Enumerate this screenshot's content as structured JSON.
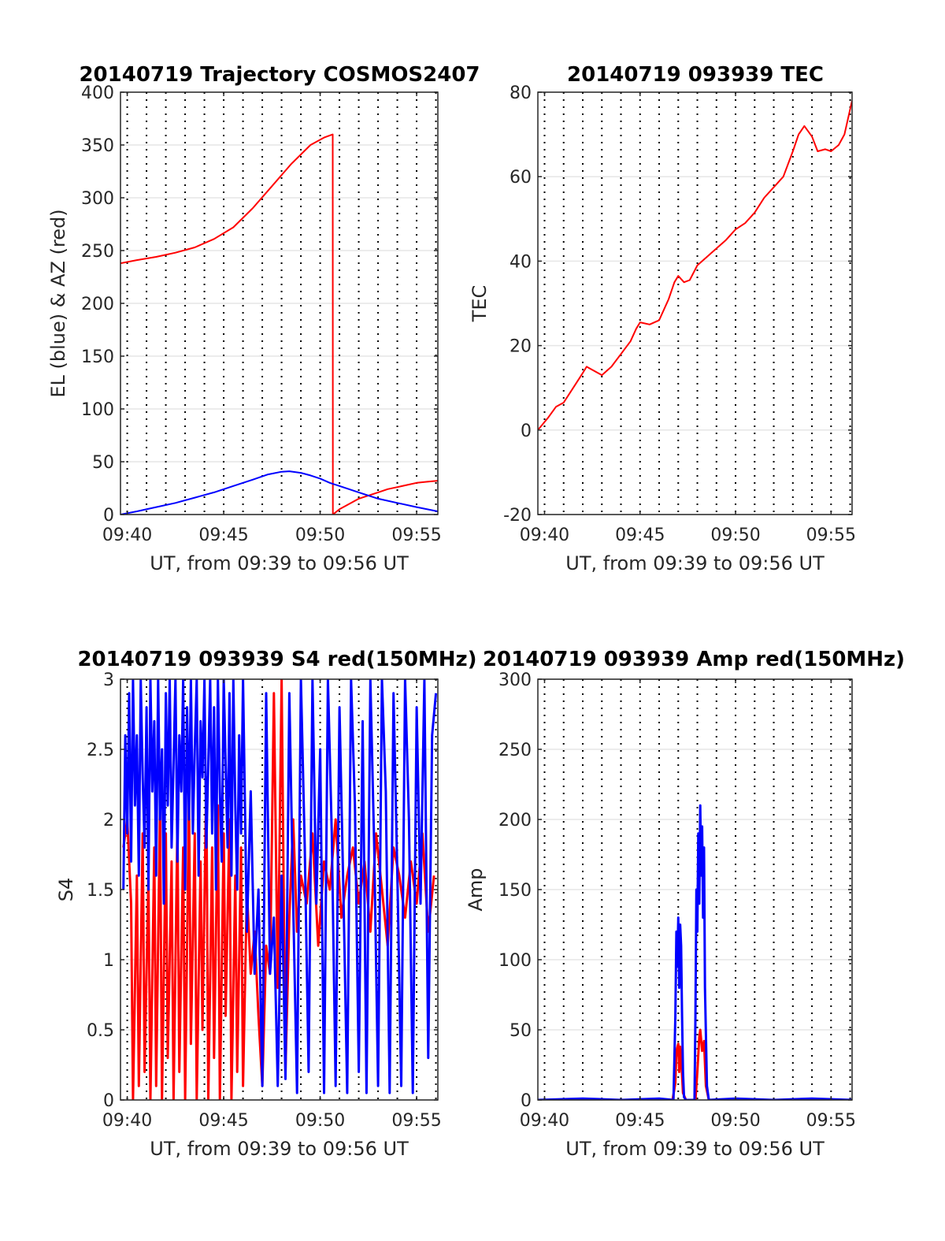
{
  "colors": {
    "el": "#0000ff",
    "az": "#ff0000",
    "grid": "#000000",
    "axis": "#262626"
  },
  "chart_data": [
    {
      "type": "line",
      "title": "20140719 Trajectory COSMOS2407",
      "xlabel": "UT, from 09:39 to 09:56 UT",
      "ylabel": "EL (blue) & AZ (red)",
      "xlim": [
        39.65,
        56.1
      ],
      "ylim": [
        0,
        400
      ],
      "xticks": [
        40,
        45,
        50,
        55
      ],
      "xtick_labels": [
        "09:40",
        "09:45",
        "09:50",
        "09:55"
      ],
      "yticks": [
        0,
        50,
        100,
        150,
        200,
        250,
        300,
        350,
        400
      ],
      "ytick_labels": [
        "0",
        "50",
        "100",
        "150",
        "200",
        "250",
        "300",
        "350",
        "400"
      ],
      "series": [
        {
          "color": "#ff0000",
          "x": [
            39.65,
            40.5,
            41.5,
            42.5,
            43.5,
            44.5,
            45.5,
            46.5,
            47.5,
            48.5,
            49.5,
            50.2,
            50.65,
            50.66,
            51.0,
            51.5,
            52.0,
            52.5,
            53.0,
            53.5,
            54.0,
            54.5,
            55.0,
            55.5,
            56.1
          ],
          "y": [
            238,
            241,
            244,
            248,
            253,
            261,
            272,
            290,
            311,
            332,
            350,
            357,
            360,
            0,
            5,
            10,
            15,
            18,
            21,
            24,
            26,
            28,
            30,
            31,
            32
          ]
        },
        {
          "color": "#0000ff",
          "x": [
            39.65,
            40.5,
            41.5,
            42.5,
            43.5,
            44.5,
            45.5,
            46.5,
            47.3,
            48.0,
            48.4,
            49.0,
            49.5,
            50.0,
            50.5,
            51.0,
            52.0,
            53.0,
            54.0,
            55.0,
            56.1
          ],
          "y": [
            0,
            3,
            7,
            11,
            16,
            21,
            27,
            33,
            38,
            40.5,
            41,
            39.5,
            37,
            34,
            30,
            27,
            21,
            15,
            11,
            7,
            3
          ]
        }
      ]
    },
    {
      "type": "line",
      "title": "20140719 093939 TEC",
      "xlabel": "UT, from 09:39 to 09:56 UT",
      "ylabel": "TEC",
      "xlim": [
        39.65,
        56.1
      ],
      "ylim": [
        -20,
        80
      ],
      "xticks": [
        40,
        45,
        50,
        55
      ],
      "xtick_labels": [
        "09:40",
        "09:45",
        "09:50",
        "09:55"
      ],
      "yticks": [
        -20,
        0,
        20,
        40,
        60,
        80
      ],
      "ytick_labels": [
        "-20",
        "0",
        "20",
        "40",
        "60",
        "80"
      ],
      "series": [
        {
          "color": "#ff0000",
          "x": [
            39.65,
            40.2,
            40.6,
            41.0,
            41.5,
            42.0,
            42.2,
            42.6,
            43.0,
            43.5,
            44.0,
            44.5,
            44.8,
            45.0,
            45.5,
            46.0,
            46.5,
            46.8,
            47.0,
            47.3,
            47.6,
            48.0,
            48.5,
            49.0,
            49.5,
            50.0,
            50.5,
            51.0,
            51.5,
            52.0,
            52.5,
            53.0,
            53.3,
            53.6,
            54.0,
            54.3,
            54.7,
            55.0,
            55.4,
            55.7,
            56.1
          ],
          "y": [
            0,
            3,
            5.5,
            6.5,
            10,
            13.5,
            15,
            14,
            13,
            15,
            18,
            21,
            24,
            25.5,
            25,
            26,
            31,
            35,
            36.5,
            35,
            35.5,
            39,
            41,
            43,
            45,
            47.5,
            49,
            51.5,
            55,
            57.5,
            60,
            66,
            70,
            72,
            69.5,
            66,
            66.5,
            66,
            67.5,
            70,
            78
          ]
        }
      ]
    },
    {
      "type": "line",
      "title": "20140719 093939 S4 red(150MHz)",
      "xlabel": "UT, from 09:39 to 09:56 UT",
      "ylabel": "S4",
      "xlim": [
        39.65,
        56.1
      ],
      "ylim": [
        0,
        3
      ],
      "xticks": [
        40,
        45,
        50,
        55
      ],
      "xtick_labels": [
        "09:40",
        "09:45",
        "09:50",
        "09:55"
      ],
      "yticks": [
        0,
        0.5,
        1,
        1.5,
        2,
        2.5,
        3
      ],
      "ytick_labels": [
        "0",
        "0.5",
        "1",
        "1.5",
        "2",
        "2.5",
        "3"
      ],
      "series": [
        {
          "color": "#ff0000",
          "x": [
            39.8,
            40.0,
            40.2,
            40.3,
            40.5,
            40.6,
            40.8,
            40.9,
            41.1,
            41.2,
            41.4,
            41.5,
            41.7,
            41.8,
            42.0,
            42.1,
            42.3,
            42.4,
            42.6,
            42.7,
            42.9,
            43.0,
            43.2,
            43.3,
            43.5,
            43.6,
            43.8,
            43.9,
            44.1,
            44.2,
            44.4,
            44.5,
            44.7,
            44.8,
            45.0,
            45.1,
            45.3,
            45.4,
            45.6,
            45.7,
            45.9,
            46.0,
            46.2,
            46.4,
            46.6,
            46.8,
            47.0,
            47.2,
            47.4,
            47.6,
            47.8,
            48.0,
            48.2,
            48.4,
            48.6,
            48.8,
            49.0,
            49.3,
            49.6,
            49.9,
            50.2,
            50.5,
            50.8,
            51.1,
            51.4,
            51.7,
            52.0,
            52.3,
            52.6,
            52.9,
            53.2,
            53.5,
            53.8,
            54.1,
            54.4,
            54.7,
            55.0,
            55.3,
            55.6,
            55.9
          ],
          "y": [
            1.8,
            2.0,
            1.4,
            0,
            1.6,
            0.1,
            1.9,
            0.2,
            1.6,
            0,
            1.8,
            0.1,
            2.1,
            0,
            1.9,
            0.3,
            1.7,
            0,
            2.0,
            0.2,
            1.8,
            0,
            2.2,
            0.4,
            1.9,
            0,
            1.7,
            0.5,
            2.3,
            0,
            1.8,
            0.3,
            2.1,
            0,
            1.9,
            0.6,
            2.0,
            0,
            1.6,
            0.2,
            1.8,
            0.1,
            1.5,
            0.9,
            1.2,
            0.6,
            0.1,
            1.1,
            0.9,
            2.9,
            0.8,
            3.0,
            0.2,
            1.3,
            2.0,
            1.2,
            1.6,
            1.4,
            1.9,
            1.1,
            1.7,
            1.5,
            2.0,
            1.3,
            1.6,
            1.8,
            1.4,
            1.7,
            1.2,
            1.9,
            1.5,
            1.1,
            1.8,
            1.6,
            1.3,
            1.7,
            1.4,
            1.9,
            1.2,
            1.6
          ]
        },
        {
          "color": "#0000ff",
          "x": [
            39.8,
            39.9,
            40.0,
            40.1,
            40.2,
            40.3,
            40.4,
            40.5,
            40.6,
            40.7,
            40.8,
            40.9,
            41.0,
            41.1,
            41.2,
            41.3,
            41.4,
            41.5,
            41.6,
            41.7,
            41.8,
            41.9,
            42.0,
            42.1,
            42.2,
            42.3,
            42.4,
            42.5,
            42.6,
            42.7,
            42.8,
            42.9,
            43.0,
            43.1,
            43.2,
            43.3,
            43.4,
            43.5,
            43.6,
            43.7,
            43.8,
            43.9,
            44.0,
            44.1,
            44.2,
            44.3,
            44.4,
            44.5,
            44.6,
            44.7,
            44.8,
            44.9,
            45.0,
            45.1,
            45.2,
            45.3,
            45.4,
            45.5,
            45.6,
            45.7,
            45.8,
            45.9,
            46.0,
            46.2,
            46.4,
            46.6,
            46.8,
            47.0,
            47.2,
            47.4,
            47.6,
            47.8,
            48.0,
            48.2,
            48.4,
            48.6,
            48.8,
            49.0,
            49.2,
            49.4,
            49.6,
            49.8,
            50.0,
            50.2,
            50.4,
            50.6,
            50.8,
            51.0,
            51.2,
            51.4,
            51.6,
            51.8,
            52.0,
            52.2,
            52.4,
            52.6,
            52.8,
            53.0,
            53.2,
            53.4,
            53.6,
            53.8,
            54.0,
            54.2,
            54.4,
            54.6,
            54.8,
            55.0,
            55.2,
            55.4,
            55.6,
            55.8,
            56.0
          ],
          "y": [
            1.5,
            2.6,
            1.9,
            2.9,
            1.7,
            3.0,
            2.1,
            2.6,
            1.6,
            3.0,
            2.3,
            1.8,
            2.8,
            1.5,
            3.0,
            2.2,
            2.7,
            1.6,
            3.0,
            2.0,
            2.5,
            1.4,
            2.9,
            2.1,
            3.0,
            1.8,
            2.4,
            3.0,
            1.7,
            2.6,
            2.2,
            3.0,
            1.5,
            2.8,
            2.0,
            3.0,
            1.9,
            2.5,
            3.0,
            1.6,
            2.7,
            2.3,
            3.0,
            1.8,
            2.4,
            3.0,
            1.9,
            2.8,
            1.5,
            3.0,
            2.2,
            1.7,
            3.0,
            2.4,
            1.8,
            2.9,
            1.6,
            3.0,
            2.1,
            1.5,
            2.6,
            1.9,
            3.0,
            1.2,
            2.2,
            0.9,
            1.5,
            0.1,
            2.9,
            0.9,
            1.3,
            0.1,
            1.6,
            0.15,
            2.9,
            1.4,
            0.05,
            3.0,
            1.8,
            0.2,
            3.0,
            1.4,
            2.5,
            0.05,
            3.0,
            1.9,
            0.1,
            2.8,
            1.5,
            0.05,
            3.0,
            2.1,
            0.2,
            2.7,
            0.05,
            3.0,
            1.8,
            0.1,
            3.0,
            2.2,
            0.05,
            2.9,
            1.6,
            0.1,
            3.0,
            2.0,
            0.05,
            2.8,
            1.4,
            3.0,
            0.3,
            2.6,
            2.9
          ]
        }
      ]
    },
    {
      "type": "line",
      "title": "20140719 093939 Amp red(150MHz)",
      "xlabel": "UT, from 09:39 to 09:56 UT",
      "ylabel": "Amp",
      "xlim": [
        39.65,
        56.1
      ],
      "ylim": [
        0,
        300
      ],
      "xticks": [
        40,
        45,
        50,
        55
      ],
      "xtick_labels": [
        "09:40",
        "09:45",
        "09:50",
        "09:55"
      ],
      "yticks": [
        0,
        50,
        100,
        150,
        200,
        250,
        300
      ],
      "ytick_labels": [
        "0",
        "50",
        "100",
        "150",
        "200",
        "250",
        "300"
      ],
      "series": [
        {
          "color": "#ff0000",
          "x": [
            39.65,
            46.7,
            46.85,
            46.9,
            47.0,
            47.05,
            47.1,
            47.15,
            47.25,
            47.4,
            47.9,
            48.0,
            48.1,
            48.15,
            48.25,
            48.35,
            48.45,
            48.6,
            56.1
          ],
          "y": [
            0,
            0,
            12,
            35,
            40,
            20,
            38,
            30,
            5,
            0,
            0,
            20,
            45,
            50,
            35,
            42,
            10,
            0,
            0
          ]
        },
        {
          "color": "#0000ff",
          "x": [
            39.65,
            42.0,
            44.0,
            46.0,
            46.75,
            46.85,
            46.9,
            46.95,
            47.0,
            47.05,
            47.1,
            47.15,
            47.2,
            47.25,
            47.3,
            47.4,
            47.85,
            47.9,
            47.95,
            48.0,
            48.05,
            48.1,
            48.15,
            48.2,
            48.25,
            48.3,
            48.35,
            48.4,
            48.5,
            48.6,
            50.0,
            52.0,
            54.0,
            56.1
          ],
          "y": [
            0,
            1,
            0,
            1,
            0,
            60,
            120,
            95,
            130,
            80,
            125,
            110,
            60,
            20,
            2,
            0,
            0,
            60,
            150,
            120,
            190,
            140,
            210,
            160,
            195,
            130,
            180,
            80,
            10,
            0,
            1,
            0,
            1,
            0
          ]
        }
      ]
    }
  ]
}
